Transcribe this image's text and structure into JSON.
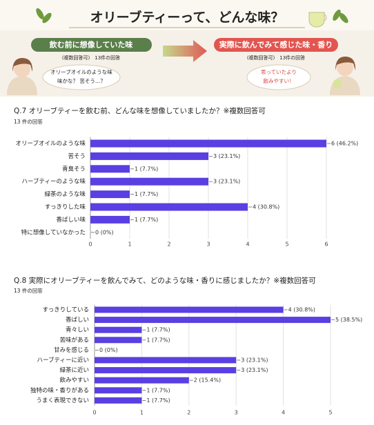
{
  "header": {
    "title": "オリーブティーって、どんな味？",
    "left": {
      "label": "飲む前に想像していた味",
      "note": "(複数回答可)　13件の回答",
      "bubble": [
        "オリーブオイルのような味",
        "味かな？ 苦そう…？"
      ]
    },
    "right": {
      "label": "実際に飲んでみて感じた味・香り",
      "note": "(複数回答可)　13件の回答",
      "bubble": [
        "思っていたより",
        "飲みやすい！"
      ]
    }
  },
  "chart_data": [
    {
      "type": "bar",
      "orientation": "horizontal",
      "title": "Q.7 オリーブティーを飲む前、どんな味を想像していましたか？※複数回答可",
      "subtitle": "13 件の回答",
      "categories": [
        "オリーブオイルのような味",
        "苦そう",
        "青臭そう",
        "ハーブティーのような味",
        "緑茶のような味",
        "すっきりした味",
        "香ばしい味",
        "特に想像していなかった"
      ],
      "values": [
        6,
        3,
        1,
        3,
        1,
        4,
        1,
        0
      ],
      "value_labels": [
        "6 (46.2%)",
        "3 (23.1%)",
        "1 (7.7%)",
        "3 (23.1%)",
        "1 (7.7%)",
        "4 (30.8%)",
        "1 (7.7%)",
        "0 (0%)"
      ],
      "color": "#5a3fe2",
      "xlim": [
        0,
        6
      ],
      "xticks": [
        0,
        1,
        2,
        3,
        4,
        5,
        6
      ],
      "grid": true
    },
    {
      "type": "bar",
      "orientation": "horizontal",
      "title": "Q.8 実際にオリーブティーを飲んでみて、どのような味・香りに感じましたか？※複数回答可",
      "subtitle": "13 件の回答",
      "categories": [
        "すっきりしている",
        "香ばしい",
        "青々しい",
        "苦味がある",
        "甘みを感じる",
        "ハーブティーに近い",
        "緑茶に近い",
        "飲みやすい",
        "独特の味・香りがある",
        "うまく表現できない"
      ],
      "values": [
        4,
        5,
        1,
        1,
        0,
        3,
        3,
        2,
        1,
        1
      ],
      "value_labels": [
        "4 (30.8%)",
        "5 (38.5%)",
        "1 (7.7%)",
        "1 (7.7%)",
        "0 (0%)",
        "3 (23.1%)",
        "3 (23.1%)",
        "2 (15.4%)",
        "1 (7.7%)",
        "1 (7.7%)"
      ],
      "color": "#5a3fe2",
      "xlim": [
        0,
        5
      ],
      "xticks": [
        0,
        1,
        2,
        3,
        4,
        5
      ],
      "grid": true
    }
  ]
}
